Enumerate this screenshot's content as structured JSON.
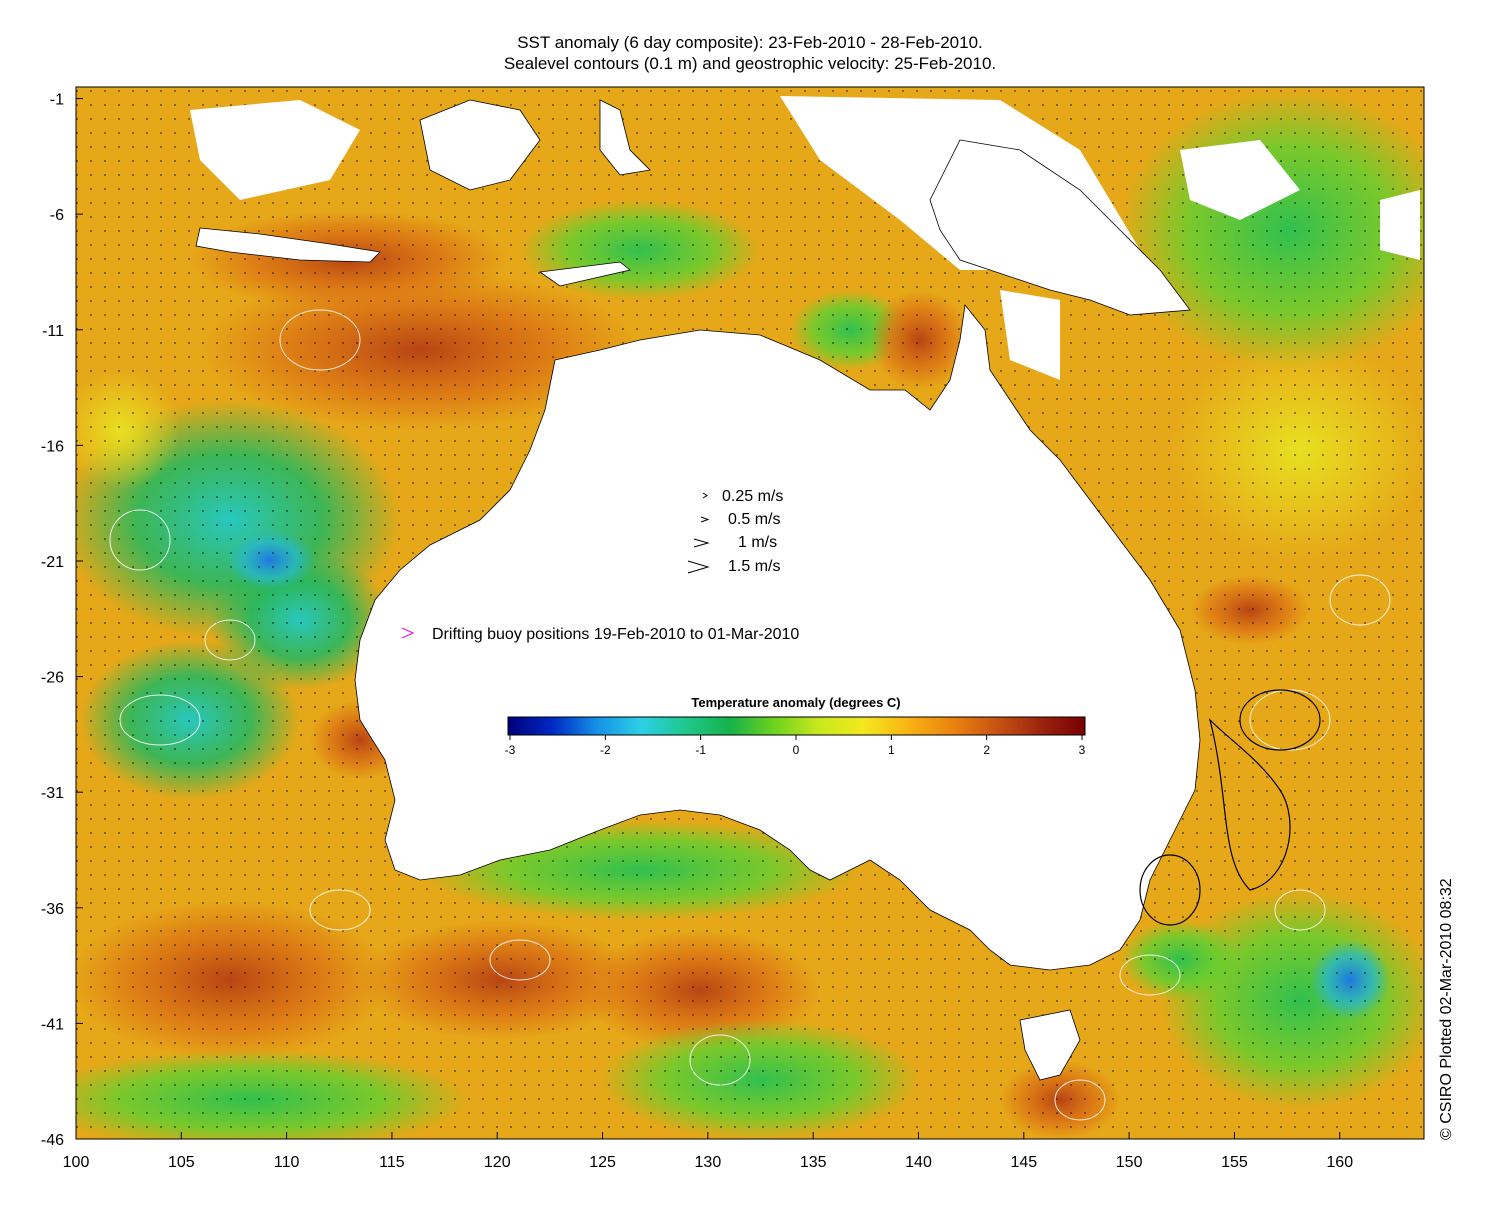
{
  "title": {
    "line1": "SST anomaly (6 day composite): 23-Feb-2010 - 28-Feb-2010.",
    "line2": "Sealevel contours (0.1 m) and geostrophic velocity: 25-Feb-2010."
  },
  "axes": {
    "x_ticks": [
      100,
      105,
      110,
      115,
      120,
      125,
      130,
      135,
      140,
      145,
      150,
      155,
      160
    ],
    "y_ticks": [
      -1,
      -6,
      -11,
      -16,
      -21,
      -26,
      -31,
      -36,
      -41,
      -46
    ],
    "xlim": [
      100,
      164
    ],
    "ylim": [
      -46,
      -0.5
    ]
  },
  "velocity_legend": [
    "0.25 m/s",
    "0.5 m/s",
    "1 m/s",
    "1.5 m/s"
  ],
  "buoy_legend": "Drifting buoy positions 19-Feb-2010 to 01-Mar-2010",
  "colorbar": {
    "title": "Temperature anomaly (degrees C)",
    "ticks": [
      -3,
      -2,
      -1,
      0,
      1,
      2,
      3
    ],
    "colors": [
      "#00007a",
      "#0029c4",
      "#1590e6",
      "#2cd0e6",
      "#1ec88c",
      "#16b24a",
      "#6ed21e",
      "#c8e81e",
      "#f4e81e",
      "#f8b414",
      "#ec8410",
      "#c85412",
      "#9c2410",
      "#780000"
    ]
  },
  "credit": "© CSIRO Plotted 02-Mar-2010 08:32"
}
